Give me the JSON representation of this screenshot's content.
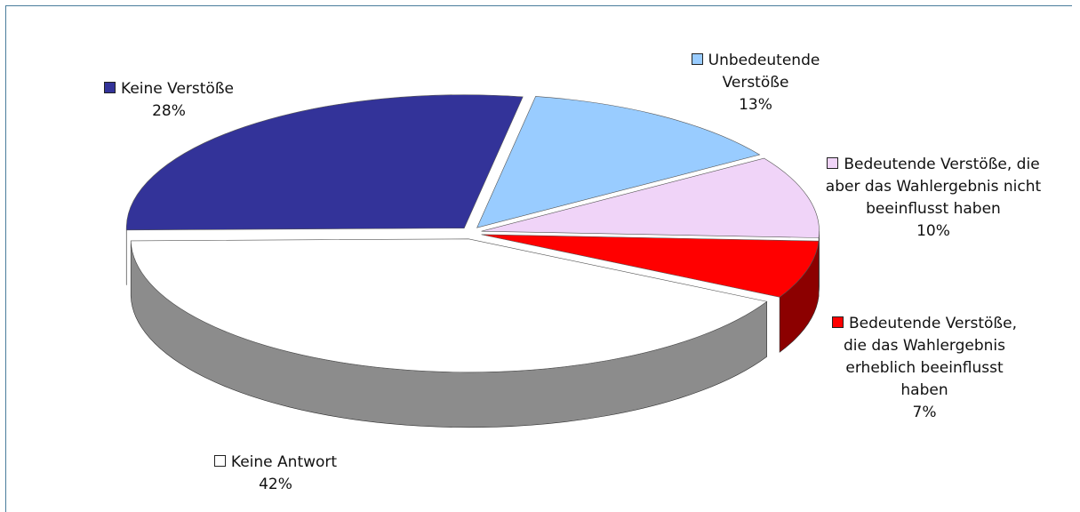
{
  "chart_data": {
    "type": "pie3d",
    "categories": [
      "Unbedeutende Verstöße",
      "Bedeutende Verstöße, die aber das Wahlergebnis nicht beeinflusst haben",
      "Bedeutende Verstöße, die das Wahlergebnis erheblich beeinflusst haben",
      "Keine Antwort",
      "Keine Verstöße"
    ],
    "values": [
      13,
      10,
      7,
      42,
      28
    ],
    "value_labels": [
      "13%",
      "10%",
      "7%",
      "42%",
      "28%"
    ],
    "colors": [
      "#99ccff",
      "#f0d4f8",
      "#ff0000",
      "#ffffff",
      "#333399"
    ]
  }
}
